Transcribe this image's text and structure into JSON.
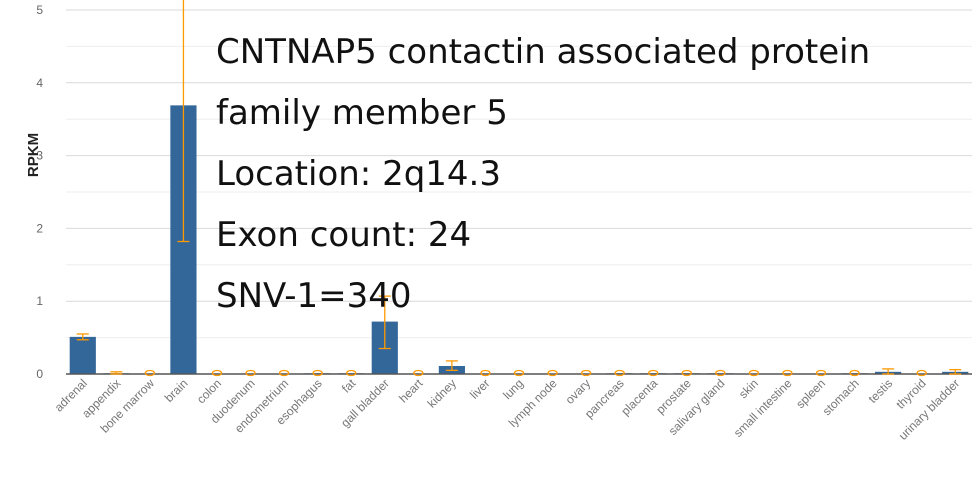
{
  "chart_data": {
    "type": "bar",
    "ylabel": "RPKM",
    "ylim": [
      0,
      5
    ],
    "yticks": [
      "0",
      "1",
      "2",
      "3",
      "4",
      "5"
    ],
    "grid": true,
    "bar_color": "#336699",
    "error_color": "#ff9900",
    "categories": [
      "adrenal",
      "appendix",
      "bone marrow",
      "brain",
      "colon",
      "duodenum",
      "endometrium",
      "esophagus",
      "fat",
      "gall bladder",
      "heart",
      "kidney",
      "liver",
      "lung",
      "lymph node",
      "ovary",
      "pancreas",
      "placenta",
      "prostate",
      "salivary gland",
      "skin",
      "small intestine",
      "spleen",
      "stomach",
      "testis",
      "thyroid",
      "urinary bladder"
    ],
    "values": [
      0.51,
      0.01,
      0.0,
      3.69,
      0.005,
      0.005,
      0.0,
      0.01,
      0.01,
      0.72,
      0.005,
      0.11,
      0.005,
      0.0,
      0.005,
      0.005,
      0.01,
      0.01,
      0.01,
      0.01,
      0.005,
      0.0,
      0.005,
      0.01,
      0.03,
      0.0,
      0.03
    ],
    "error_low": [
      0.47,
      0.0,
      0.0,
      1.82,
      0.0,
      0.0,
      0.0,
      0.0,
      0.0,
      0.35,
      0.0,
      0.05,
      0.0,
      0.0,
      0.0,
      0.0,
      0.0,
      0.0,
      0.0,
      0.0,
      0.0,
      0.0,
      0.0,
      0.0,
      0.0,
      0.0,
      0.0
    ],
    "error_high": [
      0.55,
      0.03,
      0.0,
      5.2,
      0.01,
      0.01,
      0.0,
      0.02,
      0.02,
      1.07,
      0.01,
      0.18,
      0.01,
      0.0,
      0.01,
      0.01,
      0.02,
      0.02,
      0.02,
      0.02,
      0.01,
      0.0,
      0.01,
      0.02,
      0.07,
      0.0,
      0.06
    ]
  },
  "annotation": {
    "line1": "CNTNAP5 contactin associated protein",
    "line2": "family member 5",
    "line3": "Location: 2q14.3",
    "line4": "Exon count: 24",
    "line5": "SNV-1=340"
  }
}
